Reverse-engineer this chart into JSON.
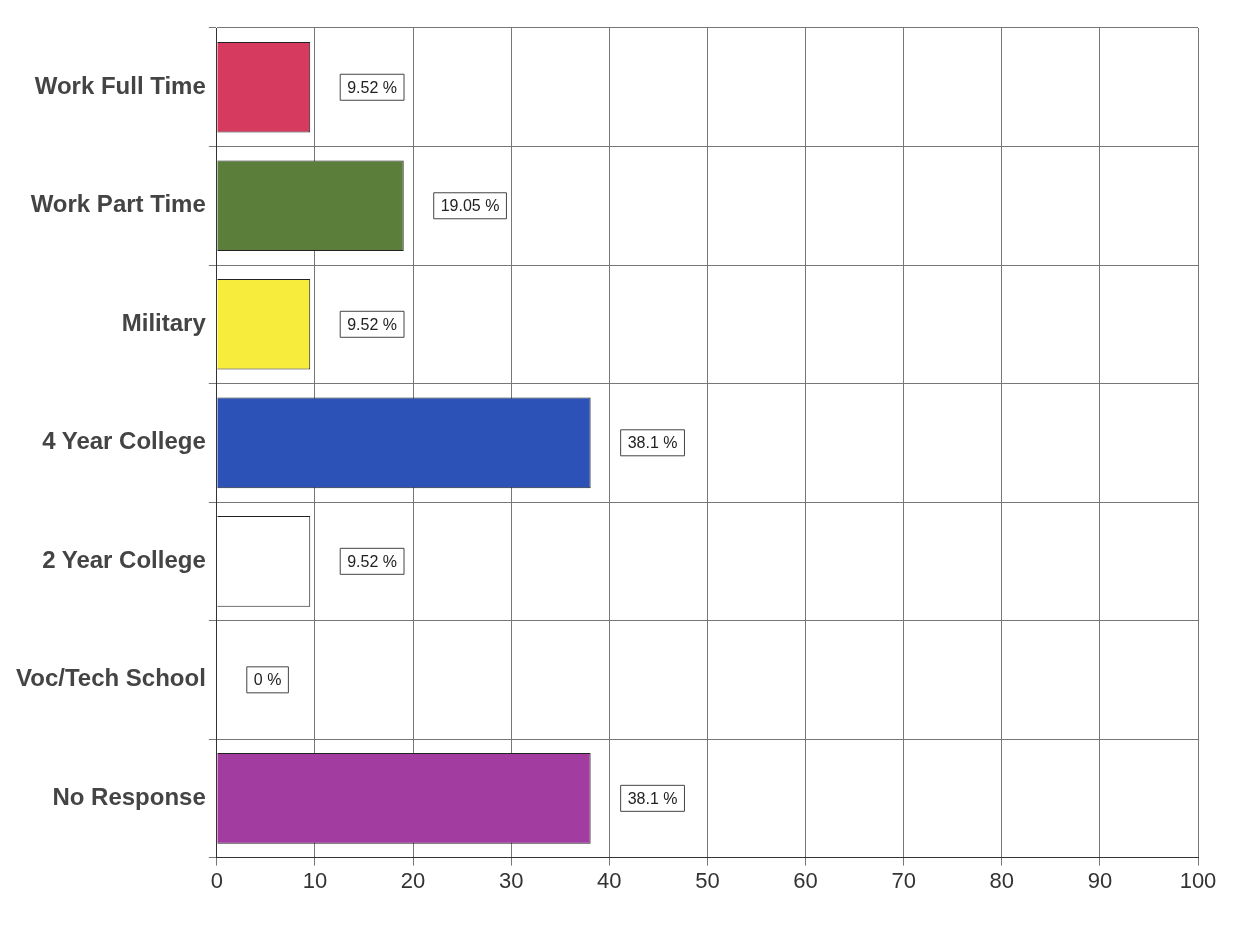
{
  "chart_data": {
    "type": "bar",
    "orientation": "horizontal",
    "categories": [
      "Work Full Time",
      "Work Part Time",
      "Military",
      "4 Year College",
      "2 Year College",
      "Voc/Tech School",
      "No Response"
    ],
    "values": [
      9.52,
      19.05,
      9.52,
      38.1,
      9.52,
      0,
      38.1
    ],
    "colors": [
      "#d63a5e",
      "#5b7f3a",
      "#f7ec3c",
      "#2c52b8",
      "#ffffff",
      "#2e2e2e",
      "#a23ca0"
    ],
    "value_labels": [
      "9.52 %",
      "19.05 %",
      "9.52 %",
      "38.1 %",
      "9.52 %",
      "0 %",
      "38.1 %"
    ],
    "xlim": [
      0,
      100
    ],
    "xticks": [
      0,
      10,
      20,
      30,
      40,
      50,
      60,
      70,
      80,
      90,
      100
    ],
    "grid": true,
    "legend": false
  }
}
